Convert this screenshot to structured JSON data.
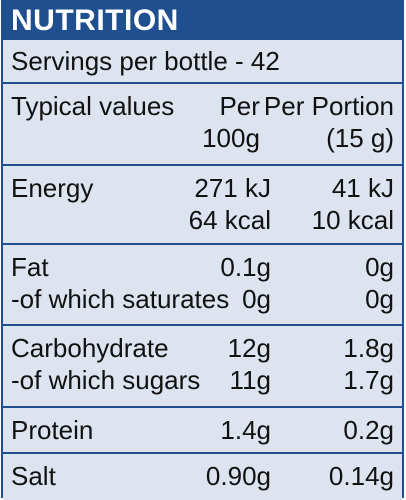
{
  "header": {
    "title": "NUTRITION"
  },
  "servings": "Servings per bottle - 42",
  "columns": {
    "label": "Typical values",
    "per100": [
      "Per",
      "100g"
    ],
    "perPortion": [
      "Per Portion",
      "(15 g)"
    ]
  },
  "rows": {
    "energy": {
      "label": [
        "Energy"
      ],
      "per100": [
        "271 kJ",
        "64 kcal"
      ],
      "portion": [
        "41 kJ",
        "10 kcal"
      ]
    },
    "fat": {
      "label": [
        "Fat",
        "-of which saturates"
      ],
      "per100": [
        "0.1g",
        "0g"
      ],
      "portion": [
        "0g",
        "0g"
      ]
    },
    "carb": {
      "label": [
        "Carbohydrate",
        "-of which sugars"
      ],
      "per100": [
        "12g",
        "11g"
      ],
      "portion": [
        "1.8g",
        "1.7g"
      ]
    },
    "protein": {
      "label": [
        "Protein"
      ],
      "per100": [
        "1.4g"
      ],
      "portion": [
        "0.2g"
      ]
    },
    "salt": {
      "label": [
        "Salt"
      ],
      "per100": [
        "0.90g"
      ],
      "portion": [
        "0.14g"
      ]
    }
  },
  "colors": {
    "brand": "#1f4f8f",
    "panel": "#dde4f0"
  }
}
